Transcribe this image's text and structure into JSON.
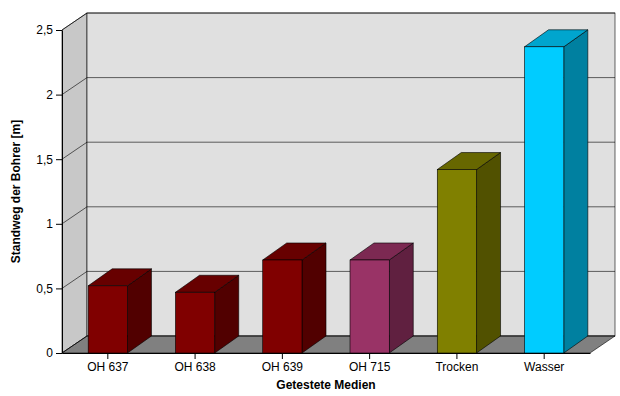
{
  "chart_data": {
    "type": "bar",
    "categories": [
      "OH 637",
      "OH 638",
      "OH 639",
      "OH 715",
      "Trocken",
      "Wasser"
    ],
    "values": [
      0.52,
      0.47,
      0.72,
      0.72,
      1.42,
      2.37
    ],
    "colors": [
      "#800000",
      "#800000",
      "#800000",
      "#993366",
      "#808000",
      "#00ccff"
    ],
    "x_label": "Getestete Medien",
    "y_label": "Standweg der Bohrer [m]",
    "ylim": [
      0,
      2.5
    ],
    "yticks": [
      0,
      {
        "value": 0.5,
        "label": "0,5"
      },
      1,
      {
        "value": 1.5,
        "label": "1,5"
      },
      2,
      {
        "value": 2.5,
        "label": "2,5"
      }
    ],
    "grid": true
  }
}
